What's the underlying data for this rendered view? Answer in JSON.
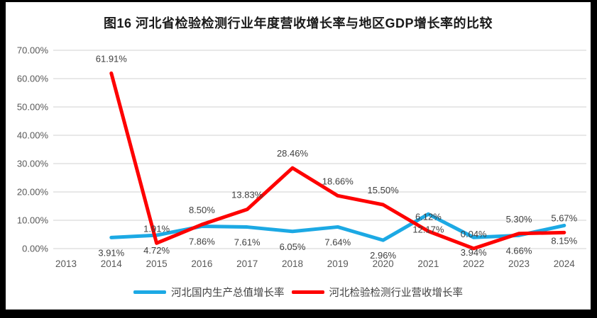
{
  "chart_data": {
    "type": "line",
    "title": "图16 河北省检验检测行业年度营收增长率与地区GDP增长率的比较",
    "categories": [
      "2013",
      "2014",
      "2015",
      "2016",
      "2017",
      "2018",
      "2019",
      "2020",
      "2021",
      "2022",
      "2023",
      "2024"
    ],
    "series": [
      {
        "name": "河北国内生产总值增长率",
        "color": "#1CA9E4",
        "label_position": "below",
        "values": [
          null,
          3.91,
          4.72,
          7.86,
          7.61,
          6.05,
          7.64,
          2.96,
          12.17,
          3.94,
          4.66,
          8.15
        ]
      },
      {
        "name": "河北检验检测行业营收增长率",
        "color": "#FE0000",
        "label_position": "above",
        "values": [
          null,
          61.91,
          1.91,
          8.5,
          13.83,
          28.46,
          18.66,
          15.5,
          6.12,
          0.04,
          5.3,
          5.67
        ]
      }
    ],
    "xlabel": "",
    "ylabel": "",
    "ylim": [
      0,
      70
    ],
    "y_axis": {
      "min": 0,
      "max": 70,
      "step": 10,
      "tick_labels": [
        "0.00%",
        "10.00%",
        "20.00%",
        "30.00%",
        "40.00%",
        "50.00%",
        "60.00%",
        "70.00%"
      ]
    },
    "grid": true,
    "legend_position": "bottom",
    "colors": {
      "gridline": "#D9D9D9",
      "tick_text": "#595959",
      "data_label_text": "#404040",
      "background": "#FFFFFF",
      "frame": "#000000"
    }
  }
}
